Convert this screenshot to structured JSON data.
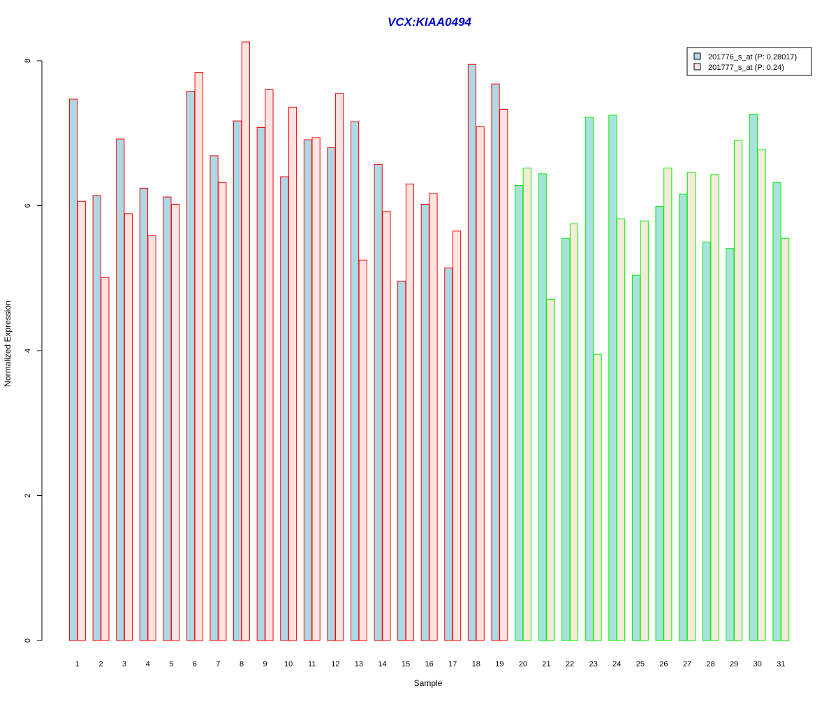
{
  "chart_data": {
    "type": "bar",
    "title": "VCX:KIAA0494",
    "title_color": "#0000CC",
    "xlabel": "Sample",
    "ylabel": "Normalized Expression",
    "ylim": [
      0,
      8
    ],
    "yticks": [
      "0",
      "2",
      "4",
      "6",
      "8"
    ],
    "grid": false,
    "legend_position": "top-right",
    "categories": [
      "1",
      "2",
      "3",
      "4",
      "5",
      "6",
      "7",
      "8",
      "9",
      "10",
      "11",
      "12",
      "13",
      "14",
      "15",
      "16",
      "17",
      "18",
      "19",
      "20",
      "21",
      "22",
      "23",
      "24",
      "25",
      "26",
      "27",
      "28",
      "29",
      "30",
      "31"
    ],
    "group_a_count": 19,
    "group_a_border": "#FF0000",
    "group_b_border": "#00EE00",
    "series": [
      {
        "name": "201776_s_at (P: 0.28017)",
        "fill_a": "#ADD8E6",
        "fill_b": "#A8E2DC",
        "values": [
          7.47,
          6.14,
          6.92,
          6.24,
          6.12,
          7.58,
          6.69,
          7.17,
          7.08,
          6.4,
          6.91,
          6.8,
          7.16,
          6.57,
          4.96,
          6.02,
          5.14,
          7.95,
          7.68,
          6.28,
          6.44,
          5.55,
          7.22,
          7.25,
          5.04,
          5.99,
          6.16,
          5.5,
          5.41,
          7.26,
          6.32
        ]
      },
      {
        "name": "201777_s_at (P: 0.24)",
        "fill_a": "#FFE4E1",
        "fill_b": "#F4EBD8",
        "values": [
          6.06,
          5.01,
          5.89,
          5.59,
          6.02,
          7.84,
          6.32,
          8.26,
          7.6,
          7.36,
          6.94,
          7.55,
          5.25,
          5.92,
          6.3,
          6.17,
          5.65,
          7.09,
          7.33,
          6.52,
          4.71,
          5.75,
          3.95,
          5.82,
          5.79,
          6.52,
          6.46,
          6.43,
          6.9,
          6.77,
          5.55
        ]
      }
    ]
  }
}
